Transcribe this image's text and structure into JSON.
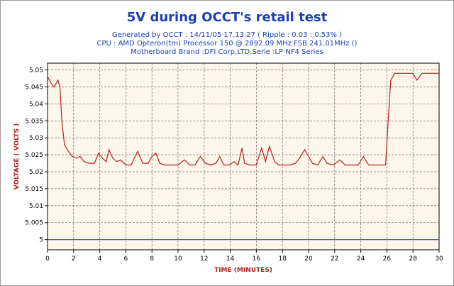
{
  "header": {
    "title": "5V during OCCT's retail test",
    "line1": "Generated by OCCT : 14/11/05 17.13.27 ( Ripple : 0.03 : 0.53% )",
    "line2": "CPU : AMD Opteron(tm) Processor 150    @ 2892.09 MHz FSB 241.01MHz ()",
    "line3": "Motherboard Brand :DFI Corp,LTD,Serie :LP NF4 Series"
  },
  "colors": {
    "plot_bg": "#fdf6ea",
    "measured": "#b22222",
    "nominal": "#2f4fd0",
    "grid": "#555555",
    "text": "#1b3fb5"
  },
  "chart_data": {
    "type": "line",
    "title": "5V during OCCT's retail test",
    "xlabel": "TIME (MINUTES)",
    "ylabel": "VOLTAGE ( VOLTS )",
    "xlim": [
      0,
      30
    ],
    "ylim": [
      4.997,
      5.052
    ],
    "grid": true,
    "x_ticks": [
      0,
      2,
      4,
      6,
      8,
      10,
      12,
      14,
      16,
      18,
      20,
      22,
      24,
      26,
      28,
      30
    ],
    "y_ticks": [
      5,
      5.005,
      5.01,
      5.015,
      5.02,
      5.025,
      5.03,
      5.035,
      5.04,
      5.045,
      5.05
    ],
    "y_tick_labels": [
      "5",
      "5.005",
      "5.01",
      "5.015",
      "5.02",
      "5.025",
      "5.03",
      "5.035",
      "5.04",
      "5.045",
      "5.05"
    ],
    "series": [
      {
        "color": "#b22222",
        "points": [
          [
            0,
            5.048
          ],
          [
            0.3,
            5.046
          ],
          [
            0.5,
            5.045
          ],
          [
            0.8,
            5.047
          ],
          [
            0.95,
            5.045
          ],
          [
            1.1,
            5.035
          ],
          [
            1.3,
            5.028
          ],
          [
            1.6,
            5.026
          ],
          [
            1.9,
            5.0245
          ],
          [
            2.2,
            5.024
          ],
          [
            2.5,
            5.0245
          ],
          [
            2.8,
            5.023
          ],
          [
            3.2,
            5.0225
          ],
          [
            3.6,
            5.0225
          ],
          [
            3.9,
            5.0255
          ],
          [
            4.2,
            5.024
          ],
          [
            4.5,
            5.023
          ],
          [
            4.7,
            5.0265
          ],
          [
            5.0,
            5.024
          ],
          [
            5.3,
            5.023
          ],
          [
            5.6,
            5.0235
          ],
          [
            6.0,
            5.022
          ],
          [
            6.4,
            5.022
          ],
          [
            6.9,
            5.026
          ],
          [
            7.3,
            5.0225
          ],
          [
            7.7,
            5.0225
          ],
          [
            8.0,
            5.0245
          ],
          [
            8.3,
            5.0255
          ],
          [
            8.6,
            5.0225
          ],
          [
            9.0,
            5.022
          ],
          [
            9.5,
            5.022
          ],
          [
            10,
            5.022
          ],
          [
            10.5,
            5.0235
          ],
          [
            10.9,
            5.022
          ],
          [
            11.3,
            5.022
          ],
          [
            11.7,
            5.0245
          ],
          [
            12.1,
            5.0225
          ],
          [
            12.5,
            5.022
          ],
          [
            12.9,
            5.0225
          ],
          [
            13.2,
            5.0245
          ],
          [
            13.5,
            5.022
          ],
          [
            13.9,
            5.022
          ],
          [
            14.3,
            5.023
          ],
          [
            14.6,
            5.022
          ],
          [
            14.9,
            5.027
          ],
          [
            15.1,
            5.0225
          ],
          [
            15.5,
            5.022
          ],
          [
            16.0,
            5.022
          ],
          [
            16.4,
            5.027
          ],
          [
            16.7,
            5.023
          ],
          [
            17.0,
            5.0275
          ],
          [
            17.4,
            5.023
          ],
          [
            17.7,
            5.022
          ],
          [
            18.1,
            5.022
          ],
          [
            18.6,
            5.022
          ],
          [
            19.0,
            5.0225
          ],
          [
            19.3,
            5.024
          ],
          [
            19.7,
            5.0265
          ],
          [
            20.0,
            5.0245
          ],
          [
            20.3,
            5.0225
          ],
          [
            20.7,
            5.022
          ],
          [
            21.1,
            5.0245
          ],
          [
            21.4,
            5.0225
          ],
          [
            21.9,
            5.022
          ],
          [
            22.4,
            5.0235
          ],
          [
            22.8,
            5.022
          ],
          [
            23.3,
            5.022
          ],
          [
            23.8,
            5.022
          ],
          [
            24.2,
            5.0245
          ],
          [
            24.6,
            5.022
          ],
          [
            25.0,
            5.022
          ],
          [
            25.5,
            5.022
          ],
          [
            25.9,
            5.022
          ],
          [
            26.1,
            5.035
          ],
          [
            26.3,
            5.047
          ],
          [
            26.6,
            5.049
          ],
          [
            27.0,
            5.049
          ],
          [
            27.5,
            5.049
          ],
          [
            28.0,
            5.049
          ],
          [
            28.3,
            5.047
          ],
          [
            28.7,
            5.049
          ],
          [
            29.2,
            5.049
          ],
          [
            29.6,
            5.049
          ],
          [
            30,
            5.049
          ]
        ]
      },
      {
        "color": "#2f4fd0",
        "points": [
          [
            0,
            5.0
          ],
          [
            30,
            5.0
          ]
        ]
      }
    ]
  }
}
